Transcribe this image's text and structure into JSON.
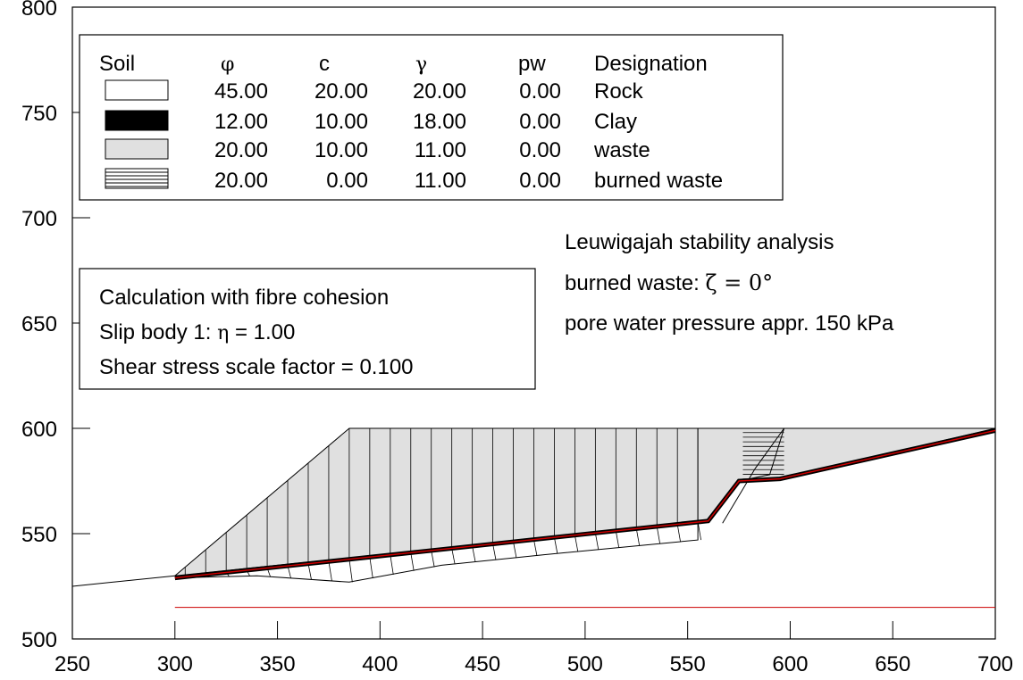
{
  "axes": {
    "xlim": [
      250,
      700
    ],
    "ylim": [
      500,
      800
    ],
    "x_ticks": [
      "250",
      "300",
      "350",
      "400",
      "450",
      "500",
      "550",
      "600",
      "650",
      "700"
    ],
    "y_ticks": [
      "500",
      "550",
      "600",
      "650",
      "700",
      "750",
      "800"
    ]
  },
  "legend": {
    "headers": {
      "soil": "Soil",
      "phi": "φ",
      "c": "c",
      "gamma": "γ",
      "pw": "pw",
      "designation": "Designation"
    },
    "rows": [
      {
        "phi": "45.00",
        "c": "20.00",
        "gamma": "20.00",
        "pw": "0.00",
        "designation": "Rock",
        "swatch": "white",
        "color": "#ffffff"
      },
      {
        "phi": "12.00",
        "c": "10.00",
        "gamma": "18.00",
        "pw": "0.00",
        "designation": "Clay",
        "swatch": "solid",
        "color": "#000000"
      },
      {
        "phi": "20.00",
        "c": "10.00",
        "gamma": "11.00",
        "pw": "0.00",
        "designation": "waste",
        "swatch": "gray",
        "color": "#e0e0e0"
      },
      {
        "phi": "20.00",
        "c": "0.00",
        "gamma": "11.00",
        "pw": "0.00",
        "designation": "burned waste",
        "swatch": "hatched",
        "color": "#ffffff"
      }
    ]
  },
  "calc_box": {
    "line1": "Calculation with fibre cohesion",
    "line2_prefix": "Slip body 1: ",
    "line2_symbol": "η",
    "line2_value": " = 1.00",
    "line3": "Shear stress scale factor = 0.100"
  },
  "annotation": {
    "title": "Leuwigajah stability analysis",
    "line2_prefix": "burned waste: ",
    "line2_math": "ζ = 0°",
    "line3": "pore water pressure appr. 150 kPa"
  },
  "colors": {
    "slip_line": "#cc0000",
    "waste_fill": "#e0e0e0",
    "water_line": "#cc0000"
  },
  "geometry": {
    "ground": [
      [
        250,
        525
      ],
      [
        300,
        530
      ]
    ],
    "waste_polygon": [
      [
        300,
        530
      ],
      [
        385,
        600
      ],
      [
        700,
        600
      ],
      [
        700,
        600
      ],
      [
        595,
        576
      ],
      [
        575,
        575
      ],
      [
        560,
        556
      ],
      [
        300,
        530
      ]
    ],
    "burned_zone": {
      "x": [
        590,
        597
      ],
      "y": [
        576,
        600
      ]
    },
    "slip_surface": [
      [
        300,
        529
      ],
      [
        560,
        556
      ],
      [
        575,
        575
      ],
      [
        595,
        576
      ],
      [
        700,
        599
      ]
    ],
    "water_level": [
      [
        300,
        515
      ],
      [
        700,
        515
      ]
    ],
    "stress_lower_edge": [
      [
        300,
        529
      ],
      [
        340,
        530
      ],
      [
        385,
        527
      ],
      [
        430,
        535
      ],
      [
        480,
        540
      ],
      [
        555,
        547
      ]
    ],
    "wedge_outline": [
      [
        560,
        556
      ],
      [
        575,
        575
      ],
      [
        590,
        578
      ],
      [
        597,
        600
      ],
      [
        583,
        581
      ],
      [
        567,
        555
      ]
    ]
  }
}
